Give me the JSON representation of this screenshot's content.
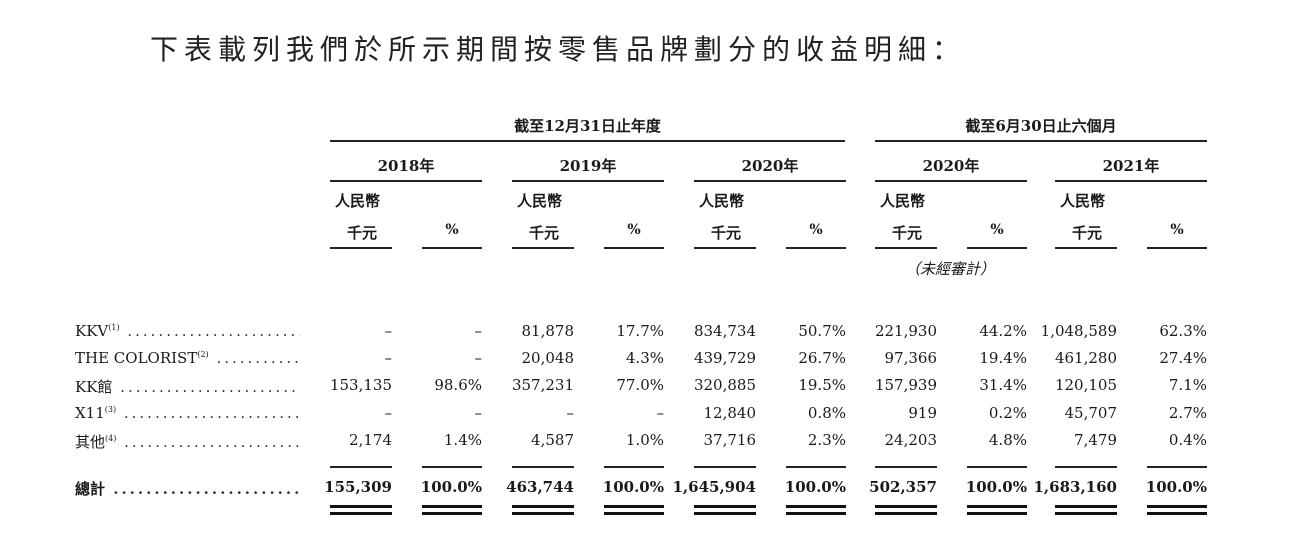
{
  "intro_text": "下表載列我們於所示期間按零售品牌劃分的收益明細：",
  "group_headers": {
    "annual": "截至12月31日止年度",
    "six_months": "截至6月30日止六個月"
  },
  "years": [
    "2018年",
    "2019年",
    "2020年",
    "2020年",
    "2021年"
  ],
  "currency_line1": "人民幣",
  "currency_line2": "千元",
  "percent_symbol": "%",
  "unaudited_label": "（未經審計）",
  "rows": [
    {
      "label": "KKV",
      "note": "(1)",
      "values": [
        "–",
        "–",
        "81,878",
        "17.7%",
        "834,734",
        "50.7%",
        "221,930",
        "44.2%",
        "1,048,589",
        "62.3%"
      ]
    },
    {
      "label": "THE COLORIST",
      "note": "(2)",
      "values": [
        "–",
        "–",
        "20,048",
        "4.3%",
        "439,729",
        "26.7%",
        "97,366",
        "19.4%",
        "461,280",
        "27.4%"
      ]
    },
    {
      "label": "KK館",
      "note": "",
      "values": [
        "153,135",
        "98.6%",
        "357,231",
        "77.0%",
        "320,885",
        "19.5%",
        "157,939",
        "31.4%",
        "120,105",
        "7.1%"
      ]
    },
    {
      "label": "X11",
      "note": "(3)",
      "values": [
        "–",
        "–",
        "–",
        "–",
        "12,840",
        "0.8%",
        "919",
        "0.2%",
        "45,707",
        "2.7%"
      ]
    },
    {
      "label": "其他",
      "note": "(4)",
      "values": [
        "2,174",
        "1.4%",
        "4,587",
        "1.0%",
        "37,716",
        "2.3%",
        "24,203",
        "4.8%",
        "7,479",
        "0.4%"
      ]
    }
  ],
  "total_row": {
    "label": "總計",
    "values": [
      "155,309",
      "100.0%",
      "463,744",
      "100.0%",
      "1,645,904",
      "100.0%",
      "502,357",
      "100.0%",
      "1,683,160",
      "100.0%"
    ]
  },
  "dot_leader": "................................................"
}
